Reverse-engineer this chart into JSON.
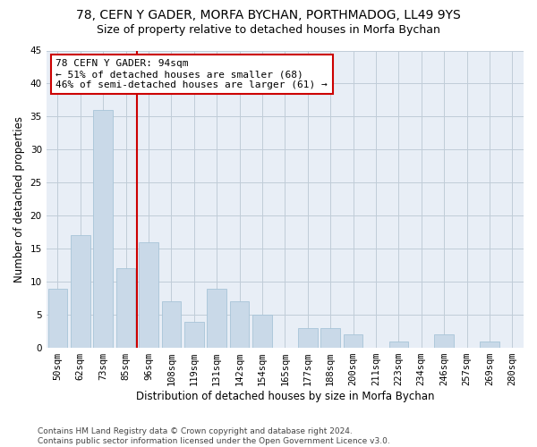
{
  "title": "78, CEFN Y GADER, MORFA BYCHAN, PORTHMADOG, LL49 9YS",
  "subtitle": "Size of property relative to detached houses in Morfa Bychan",
  "xlabel": "Distribution of detached houses by size in Morfa Bychan",
  "ylabel": "Number of detached properties",
  "categories": [
    "50sqm",
    "62sqm",
    "73sqm",
    "85sqm",
    "96sqm",
    "108sqm",
    "119sqm",
    "131sqm",
    "142sqm",
    "154sqm",
    "165sqm",
    "177sqm",
    "188sqm",
    "200sqm",
    "211sqm",
    "223sqm",
    "234sqm",
    "246sqm",
    "257sqm",
    "269sqm",
    "280sqm"
  ],
  "values": [
    9,
    17,
    36,
    12,
    16,
    7,
    4,
    9,
    7,
    5,
    0,
    3,
    3,
    2,
    0,
    1,
    0,
    2,
    0,
    1,
    0
  ],
  "bar_color": "#c9d9e8",
  "bar_edge_color": "#a8c4d8",
  "grid_color": "#c0ccd8",
  "bg_color": "#e8eef6",
  "vline_color": "#cc0000",
  "vline_pos": 3.5,
  "annotation_line1": "78 CEFN Y GADER: 94sqm",
  "annotation_line2": "← 51% of detached houses are smaller (68)",
  "annotation_line3": "46% of semi-detached houses are larger (61) →",
  "annotation_box_edge": "#cc0000",
  "ylim": [
    0,
    45
  ],
  "yticks": [
    0,
    5,
    10,
    15,
    20,
    25,
    30,
    35,
    40,
    45
  ],
  "footer": "Contains HM Land Registry data © Crown copyright and database right 2024.\nContains public sector information licensed under the Open Government Licence v3.0.",
  "title_fontsize": 10,
  "subtitle_fontsize": 9,
  "axis_label_fontsize": 8.5,
  "tick_fontsize": 7.5,
  "annotation_fontsize": 8,
  "footer_fontsize": 6.5
}
